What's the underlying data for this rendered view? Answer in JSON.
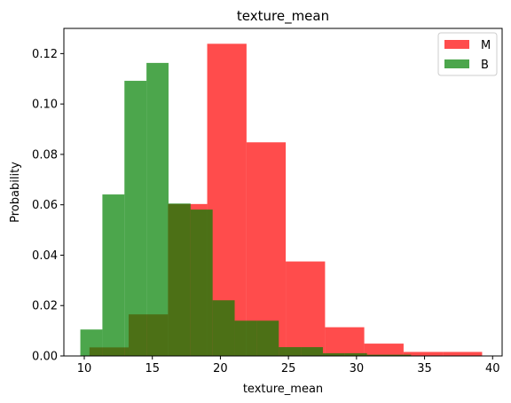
{
  "chart_data": {
    "type": "bar",
    "title": "texture_mean",
    "xlabel": "texture_mean",
    "ylabel": "Probability",
    "xlim": [
      8.5,
      40.7
    ],
    "ylim": [
      0,
      0.13
    ],
    "x_ticks": [
      10,
      15,
      20,
      25,
      30,
      35,
      40
    ],
    "y_ticks": [
      0.0,
      0.02,
      0.04,
      0.06,
      0.08,
      0.1,
      0.12
    ],
    "y_tick_labels": [
      "0.00",
      "0.02",
      "0.04",
      "0.06",
      "0.08",
      "0.10",
      "0.12"
    ],
    "legend_position": "top-right",
    "grid": false,
    "series": [
      {
        "name": "M",
        "color": "#ff0000",
        "alpha": 0.7,
        "bin_edges": [
          10.38,
          13.26,
          16.15,
          19.03,
          21.92,
          24.8,
          27.69,
          30.57,
          33.46,
          36.34,
          39.23
        ],
        "values": [
          0.0034,
          0.0165,
          0.0603,
          0.1239,
          0.0848,
          0.0375,
          0.0114,
          0.0049,
          0.0016,
          0.0016
        ]
      },
      {
        "name": "B",
        "color": "#008000",
        "alpha": 0.7,
        "bin_edges": [
          9.71,
          11.33,
          12.95,
          14.57,
          16.19,
          17.81,
          19.43,
          21.05,
          22.67,
          24.29,
          25.91,
          27.53,
          29.15,
          30.77,
          32.39,
          34.01
        ],
        "values": [
          0.0105,
          0.0641,
          0.1092,
          0.1163,
          0.0605,
          0.0581,
          0.0221,
          0.014,
          0.014,
          0.0035,
          0.0035,
          0.0011,
          0.0011,
          0.0005,
          0.0005
        ]
      }
    ]
  }
}
